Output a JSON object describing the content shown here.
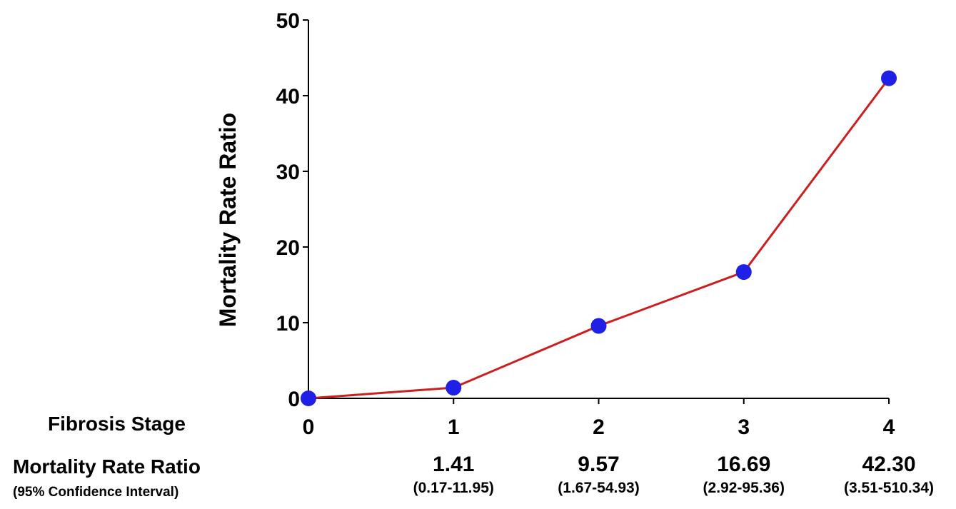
{
  "chart_data": {
    "type": "line",
    "ylabel": "Mortality  Rate Ratio",
    "xlabel": "Fibrosis Stage",
    "x": [
      0,
      1,
      2,
      3,
      4
    ],
    "y": [
      0,
      1.41,
      9.57,
      16.69,
      42.3
    ],
    "ylim": [
      0,
      50
    ],
    "yticks": [
      0,
      10,
      20,
      30,
      40,
      50
    ],
    "xticks": [
      0,
      1,
      2,
      3,
      4
    ],
    "line_color": "#cc1f1f",
    "marker_color": "#1f1fe6",
    "grid": false,
    "legend": "none"
  },
  "table": {
    "row_label": "Mortality  Rate Ratio",
    "row_sublabel": "(95% Confidence  Interval)",
    "cells": [
      {
        "stage": 1,
        "value": "1.41",
        "ci": "(0.17-11.95)"
      },
      {
        "stage": 2,
        "value": "9.57",
        "ci": "(1.67-54.93)"
      },
      {
        "stage": 3,
        "value": "16.69",
        "ci": "(2.92-95.36)"
      },
      {
        "stage": 4,
        "value": "42.30",
        "ci": "(3.51-510.34)"
      }
    ]
  }
}
